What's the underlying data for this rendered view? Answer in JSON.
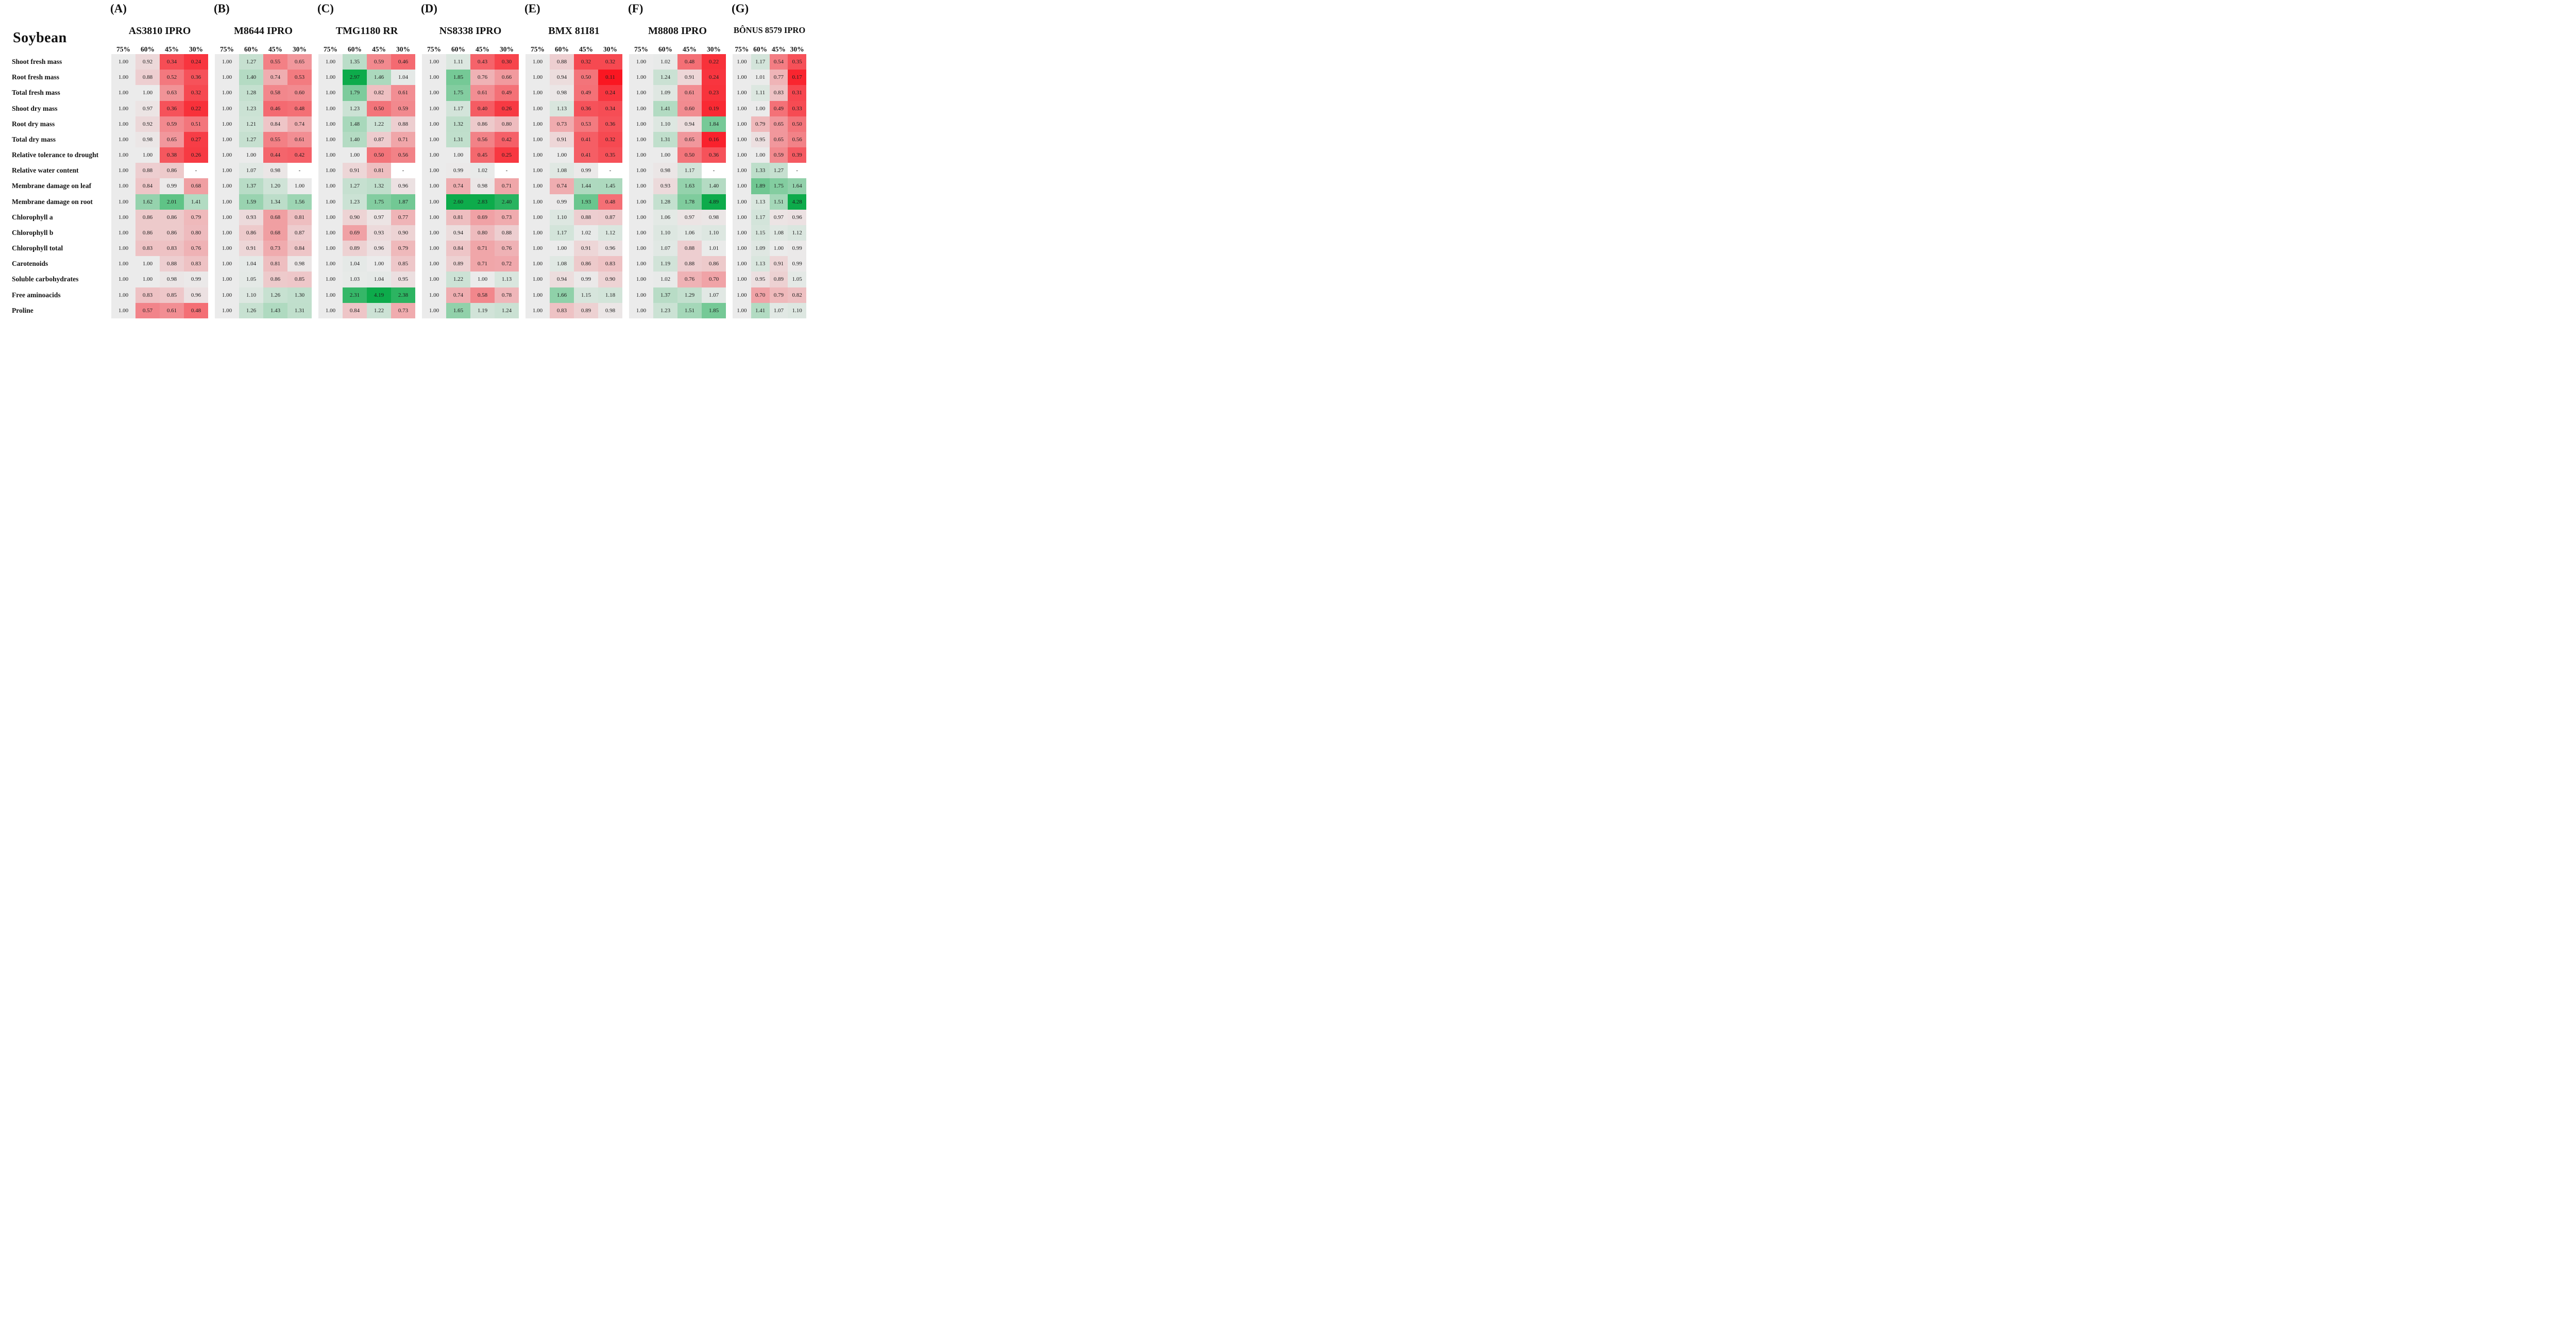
{
  "chart_data": {
    "type": "heatmap",
    "title": "Soybean",
    "row_labels": [
      "Shoot fresh mass",
      "Root fresh mass",
      "Total fresh mass",
      "Shoot dry mass",
      "Root dry mass",
      "Total dry mass",
      "Relative tolerance to drought",
      "Relative water content",
      "Membrane damage on leaf",
      "Membrane damage on root",
      "Chlorophyll a",
      "Chlorophyll b",
      "Chlorophyll total",
      "Carotenoids",
      "Soluble carbohydrates",
      "Free aminoacids",
      "Proline"
    ],
    "col_labels": [
      "75%",
      "60%",
      "45%",
      "30%"
    ],
    "missing_marker": "-",
    "colors": {
      "neutral": "#ebebeb",
      "red_max": "#fa141f",
      "green_max": "#0dab4b",
      "missing_bg": "#ffffff",
      "cell_text": "#1c1c1c"
    },
    "color_scale": {
      "red_span": 0.9,
      "green_span": 1.6,
      "midpoint": 1.0
    },
    "panels": [
      {
        "letter": "(A)",
        "title": "AS3810 IPRO",
        "values": [
          [
            "1.00",
            "0.92",
            "0.34",
            "0.24"
          ],
          [
            "1.00",
            "0.88",
            "0.52",
            "0.36"
          ],
          [
            "1.00",
            "1.00",
            "0.63",
            "0.32"
          ],
          [
            "1.00",
            "0.97",
            "0.36",
            "0.22"
          ],
          [
            "1.00",
            "0.92",
            "0.59",
            "0.51"
          ],
          [
            "1.00",
            "0.98",
            "0.65",
            "0.27"
          ],
          [
            "1.00",
            "1.00",
            "0.38",
            "0.26"
          ],
          [
            "1.00",
            "0.88",
            "0.86",
            "-"
          ],
          [
            "1.00",
            "0.84",
            "0.99",
            "0.68"
          ],
          [
            "1.00",
            "1.62",
            "2.01",
            "1.41"
          ],
          [
            "1.00",
            "0.86",
            "0.86",
            "0.79"
          ],
          [
            "1.00",
            "0.86",
            "0.86",
            "0.80"
          ],
          [
            "1.00",
            "0.83",
            "0.83",
            "0.76"
          ],
          [
            "1.00",
            "1.00",
            "0.88",
            "0.83"
          ],
          [
            "1.00",
            "1.00",
            "0.98",
            "0.99"
          ],
          [
            "1.00",
            "0.83",
            "0.85",
            "0.96"
          ],
          [
            "1.00",
            "0.57",
            "0.61",
            "0.48"
          ]
        ]
      },
      {
        "letter": "(B)",
        "title": "M8644 IPRO",
        "values": [
          [
            "1.00",
            "1.27",
            "0.55",
            "0.65"
          ],
          [
            "1.00",
            "1.40",
            "0.74",
            "0.53"
          ],
          [
            "1.00",
            "1.28",
            "0.58",
            "0.60"
          ],
          [
            "1.00",
            "1.23",
            "0.46",
            "0.48"
          ],
          [
            "1.00",
            "1.21",
            "0.84",
            "0.74"
          ],
          [
            "1.00",
            "1.27",
            "0.55",
            "0.61"
          ],
          [
            "1.00",
            "1.00",
            "0.44",
            "0.42"
          ],
          [
            "1.00",
            "1.07",
            "0.98",
            "-"
          ],
          [
            "1.00",
            "1.37",
            "1.20",
            "1.00"
          ],
          [
            "1.00",
            "1.59",
            "1.34",
            "1.56"
          ],
          [
            "1.00",
            "0.93",
            "0.68",
            "0.81"
          ],
          [
            "1.00",
            "0.86",
            "0.68",
            "0.87"
          ],
          [
            "1.00",
            "0.91",
            "0.73",
            "0.84"
          ],
          [
            "1.00",
            "1.04",
            "0.81",
            "0.98"
          ],
          [
            "1.00",
            "1.05",
            "0.86",
            "0.85"
          ],
          [
            "1.00",
            "1.10",
            "1.26",
            "1.30"
          ],
          [
            "1.00",
            "1.26",
            "1.43",
            "1.31"
          ]
        ]
      },
      {
        "letter": "(C)",
        "title": "TMG1180 RR",
        "values": [
          [
            "1.00",
            "1.35",
            "0.59",
            "0.46"
          ],
          [
            "1.00",
            "2.97",
            "1.46",
            "1.04"
          ],
          [
            "1.00",
            "1.79",
            "0.82",
            "0.61"
          ],
          [
            "1.00",
            "1.23",
            "0.50",
            "0.59"
          ],
          [
            "1.00",
            "1.48",
            "1.22",
            "0.88"
          ],
          [
            "1.00",
            "1.40",
            "0.87",
            "0.71"
          ],
          [
            "1.00",
            "1.00",
            "0.50",
            "0.56"
          ],
          [
            "1.00",
            "0.91",
            "0.81",
            "-"
          ],
          [
            "1.00",
            "1.27",
            "1.32",
            "0.96"
          ],
          [
            "1.00",
            "1.23",
            "1.75",
            "1.87"
          ],
          [
            "1.00",
            "0.90",
            "0.97",
            "0.77"
          ],
          [
            "1.00",
            "0.69",
            "0.93",
            "0.90"
          ],
          [
            "1.00",
            "0.89",
            "0.96",
            "0.79"
          ],
          [
            "1.00",
            "1.04",
            "1.00",
            "0.85"
          ],
          [
            "1.00",
            "1.03",
            "1.04",
            "0.95"
          ],
          [
            "1.00",
            "2.31",
            "4.19",
            "2.38"
          ],
          [
            "1.00",
            "0.84",
            "1.22",
            "0.73"
          ]
        ]
      },
      {
        "letter": "(D)",
        "title": "NS8338 IPRO",
        "values": [
          [
            "1.00",
            "1.11",
            "0.43",
            "0.30"
          ],
          [
            "1.00",
            "1.85",
            "0.76",
            "0.66"
          ],
          [
            "1.00",
            "1.75",
            "0.61",
            "0.49"
          ],
          [
            "1.00",
            "1.17",
            "0.40",
            "0.26"
          ],
          [
            "1.00",
            "1.32",
            "0.86",
            "0.80"
          ],
          [
            "1.00",
            "1.31",
            "0.56",
            "0.42"
          ],
          [
            "1.00",
            "1.00",
            "0.45",
            "0.25"
          ],
          [
            "1.00",
            "0.99",
            "1.02",
            "-"
          ],
          [
            "1.00",
            "0.74",
            "0.98",
            "0.71"
          ],
          [
            "1.00",
            "2.60",
            "2.83",
            "2.40"
          ],
          [
            "1.00",
            "0.81",
            "0.69",
            "0.73"
          ],
          [
            "1.00",
            "0.94",
            "0.80",
            "0.88"
          ],
          [
            "1.00",
            "0.84",
            "0.71",
            "0.76"
          ],
          [
            "1.00",
            "0.89",
            "0.71",
            "0.72"
          ],
          [
            "1.00",
            "1.22",
            "1.00",
            "1.13"
          ],
          [
            "1.00",
            "0.74",
            "0.58",
            "0.78"
          ],
          [
            "1.00",
            "1.65",
            "1.19",
            "1.24"
          ]
        ]
      },
      {
        "letter": "(E)",
        "title": "BMX 81I81",
        "values": [
          [
            "1.00",
            "0.88",
            "0.32",
            "0.32"
          ],
          [
            "1.00",
            "0.94",
            "0.50",
            "0.11"
          ],
          [
            "1.00",
            "0.98",
            "0.49",
            "0.24"
          ],
          [
            "1.00",
            "1.13",
            "0.36",
            "0.34"
          ],
          [
            "1.00",
            "0.73",
            "0.53",
            "0.36"
          ],
          [
            "1.00",
            "0.91",
            "0.41",
            "0.32"
          ],
          [
            "1.00",
            "1.00",
            "0.41",
            "0.35"
          ],
          [
            "1.00",
            "1.08",
            "0.99",
            "-"
          ],
          [
            "1.00",
            "0.74",
            "1.44",
            "1.45"
          ],
          [
            "1.00",
            "0.99",
            "1.93",
            "0.48"
          ],
          [
            "1.00",
            "1.10",
            "0.88",
            "0.87"
          ],
          [
            "1.00",
            "1.17",
            "1.02",
            "1.12"
          ],
          [
            "1.00",
            "1.00",
            "0.91",
            "0.96"
          ],
          [
            "1.00",
            "1.08",
            "0.86",
            "0.83"
          ],
          [
            "1.00",
            "0.94",
            "0.99",
            "0.90"
          ],
          [
            "1.00",
            "1.66",
            "1.15",
            "1.18"
          ],
          [
            "1.00",
            "0.83",
            "0.89",
            "0.98"
          ]
        ]
      },
      {
        "letter": "(F)",
        "title": "M8808 IPRO",
        "values": [
          [
            "1.00",
            "1.02",
            "0.48",
            "0.22"
          ],
          [
            "1.00",
            "1.24",
            "0.91",
            "0.24"
          ],
          [
            "1.00",
            "1.09",
            "0.61",
            "0.23"
          ],
          [
            "1.00",
            "1.41",
            "0.60",
            "0.19"
          ],
          [
            "1.00",
            "1.10",
            "0.94",
            "1.84"
          ],
          [
            "1.00",
            "1.31",
            "0.65",
            "0.16"
          ],
          [
            "1.00",
            "1.00",
            "0.50",
            "0.36"
          ],
          [
            "1.00",
            "0.98",
            "1.17",
            "-"
          ],
          [
            "1.00",
            "0.93",
            "1.63",
            "1.40"
          ],
          [
            "1.00",
            "1.28",
            "1.78",
            "4.89"
          ],
          [
            "1.00",
            "1.06",
            "0.97",
            "0.98"
          ],
          [
            "1.00",
            "1.10",
            "1.06",
            "1.10"
          ],
          [
            "1.00",
            "1.07",
            "0.88",
            "1.01"
          ],
          [
            "1.00",
            "1.19",
            "0.88",
            "0.86"
          ],
          [
            "1.00",
            "1.02",
            "0.76",
            "0.70"
          ],
          [
            "1.00",
            "1.37",
            "1.29",
            "1.07"
          ],
          [
            "1.00",
            "1.23",
            "1.51",
            "1.85"
          ]
        ]
      },
      {
        "letter": "(G)",
        "title": "BÔNUS 8579 IPRO",
        "values": [
          [
            "1.00",
            "1.17",
            "0.54",
            "0.35"
          ],
          [
            "1.00",
            "1.01",
            "0.77",
            "0.17"
          ],
          [
            "1.00",
            "1.11",
            "0.83",
            "0.31"
          ],
          [
            "1.00",
            "1.00",
            "0.49",
            "0.33"
          ],
          [
            "1.00",
            "0.79",
            "0.65",
            "0.50"
          ],
          [
            "1.00",
            "0.95",
            "0.65",
            "0.56"
          ],
          [
            "1.00",
            "1.00",
            "0.59",
            "0.39"
          ],
          [
            "1.00",
            "1.33",
            "1.27",
            "-"
          ],
          [
            "1.00",
            "1.89",
            "1.75",
            "1.64"
          ],
          [
            "1.00",
            "1.13",
            "1.51",
            "4.28"
          ],
          [
            "1.00",
            "1.17",
            "0.97",
            "0.96"
          ],
          [
            "1.00",
            "1.15",
            "1.08",
            "1.12"
          ],
          [
            "1.00",
            "1.09",
            "1.00",
            "0.99"
          ],
          [
            "1.00",
            "1.13",
            "0.91",
            "0.99"
          ],
          [
            "1.00",
            "0.95",
            "0.89",
            "1.05"
          ],
          [
            "1.00",
            "0.70",
            "0.79",
            "0.82"
          ],
          [
            "1.00",
            "1.41",
            "1.07",
            "1.10"
          ]
        ]
      }
    ]
  }
}
